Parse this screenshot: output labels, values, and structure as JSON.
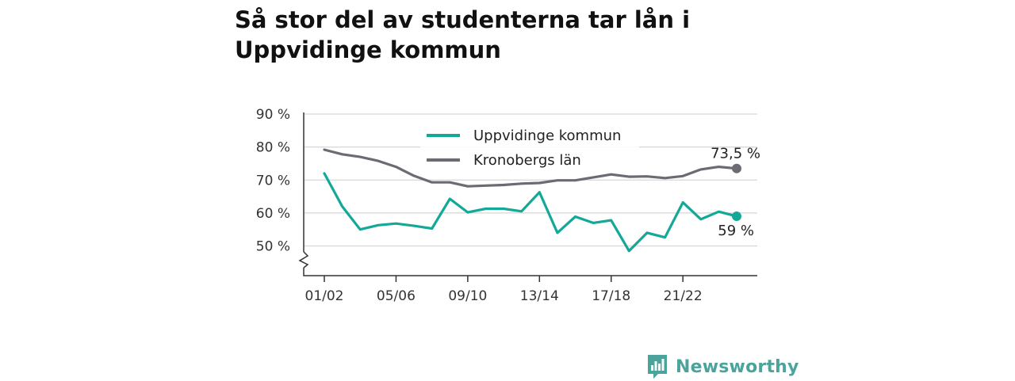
{
  "title": "Så stor del av studenterna tar lån i Uppvidinge kommun",
  "brand": {
    "name": "Newsworthy"
  },
  "colors": {
    "kommun": "#13a898",
    "lan": "#6b6b74",
    "grid": "#d6d6d6",
    "axis": "#333333",
    "brand": "#4aa49c"
  },
  "chart_data": {
    "type": "line",
    "x": [
      "01/02",
      "02/03",
      "03/04",
      "04/05",
      "05/06",
      "06/07",
      "07/08",
      "08/09",
      "09/10",
      "10/11",
      "11/12",
      "12/13",
      "13/14",
      "14/15",
      "15/16",
      "16/17",
      "17/18",
      "18/19",
      "19/20",
      "20/21",
      "21/22",
      "22/23",
      "23/24",
      "24/25"
    ],
    "x_tick_labels": [
      "01/02",
      "05/06",
      "09/10",
      "13/14",
      "17/18",
      "21/22"
    ],
    "y_tick_labels": [
      "50 %",
      "60 %",
      "70 %",
      "80 %",
      "90 %"
    ],
    "y_ticks": [
      50,
      60,
      70,
      80,
      90
    ],
    "ylim": [
      41,
      90
    ],
    "y_axis_break": true,
    "grid": true,
    "legend_position": "top-center",
    "series": [
      {
        "name": "Uppvidinge kommun",
        "values": [
          72.0,
          62.0,
          55.0,
          56.3,
          56.8,
          56.1,
          55.3,
          64.3,
          60.2,
          61.3,
          61.3,
          60.5,
          66.3,
          54.0,
          58.9,
          57.0,
          57.8,
          48.5,
          54.0,
          52.6,
          63.2,
          58.1,
          60.4,
          59.0
        ],
        "end_label": "59 %"
      },
      {
        "name": "Kronobergs län",
        "values": [
          79.2,
          77.8,
          77.0,
          75.8,
          74.0,
          71.3,
          69.3,
          69.3,
          68.1,
          68.3,
          68.5,
          68.9,
          69.1,
          69.9,
          69.9,
          70.8,
          71.7,
          71.0,
          71.1,
          70.6,
          71.2,
          73.2,
          74.0,
          73.5
        ],
        "end_label": "73,5 %"
      }
    ]
  }
}
